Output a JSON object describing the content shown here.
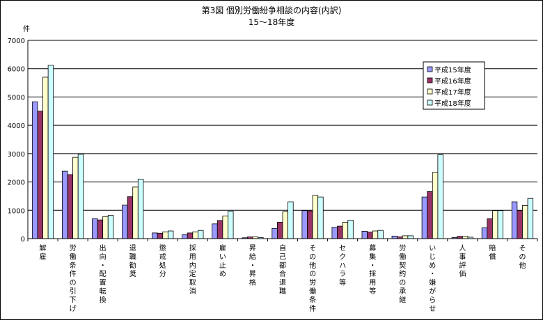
{
  "chart_data": {
    "type": "bar",
    "title": "第3図  個別労働紛争相談の内容(内訳)",
    "subtitle": "15～18年度",
    "ylabel": "件",
    "ylim": [
      0,
      7000
    ],
    "yticks": [
      0,
      1000,
      2000,
      3000,
      4000,
      5000,
      6000,
      7000
    ],
    "grid": true,
    "legend_position": "top-right",
    "categories": [
      "解雇",
      "労働条件の引下げ",
      "出向・配置転換",
      "退職勧奨",
      "懲戒処分",
      "採用内定取消",
      "雇い止め",
      "昇給・昇格",
      "自己都合退職",
      "その他の労働条件",
      "セクハラ等",
      "募集・採用等",
      "労働契約の承継",
      "いじめ・嫌がらせ",
      "人事評価",
      "賠償",
      "その他"
    ],
    "series": [
      {
        "name": "平成15年度",
        "color": "#9999ff",
        "values": [
          4830,
          2380,
          700,
          1180,
          200,
          140,
          520,
          30,
          360,
          990,
          400,
          260,
          90,
          1470,
          40,
          380,
          1300
        ]
      },
      {
        "name": "平成16年度",
        "color": "#993366",
        "values": [
          4500,
          2260,
          660,
          1480,
          190,
          200,
          640,
          60,
          580,
          980,
          440,
          230,
          60,
          1660,
          80,
          700,
          990
        ]
      },
      {
        "name": "平成17年度",
        "color": "#ffffcc",
        "values": [
          5700,
          2870,
          780,
          1820,
          240,
          240,
          800,
          60,
          950,
          1530,
          580,
          270,
          100,
          2340,
          80,
          990,
          1170
        ]
      },
      {
        "name": "平成18年度",
        "color": "#ccffff",
        "values": [
          6120,
          2980,
          820,
          2100,
          270,
          290,
          970,
          40,
          1300,
          1470,
          650,
          290,
          100,
          2960,
          50,
          990,
          1420
        ]
      }
    ]
  }
}
